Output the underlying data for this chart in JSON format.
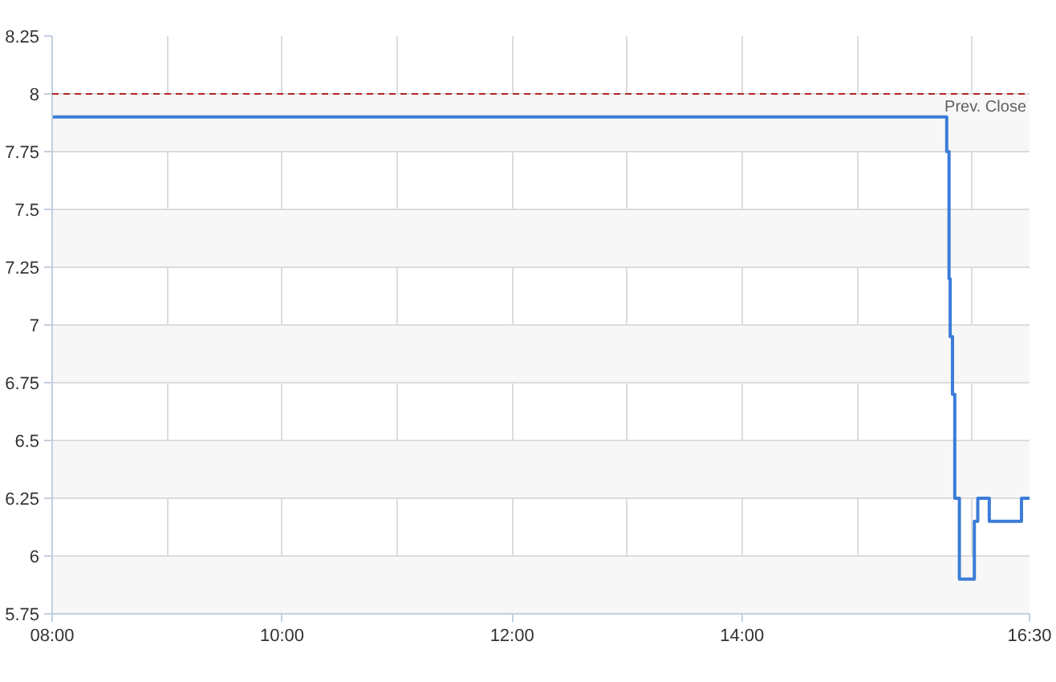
{
  "chart_data": {
    "type": "step",
    "x": [
      8,
      15.78,
      15.8,
      15.81,
      15.83,
      15.85,
      15.89,
      16.02,
      16.05,
      16.15,
      16.43,
      16.5
    ],
    "series": [
      {
        "color": "#3b7dd8",
        "values": [
          7.9,
          7.75,
          7.2,
          6.95,
          6.7,
          6.25,
          5.9,
          6.15,
          6.25,
          6.15,
          6.25,
          6.25
        ]
      }
    ],
    "xlim": [
      8,
      16.5
    ],
    "ylim": [
      5.75,
      8.25
    ],
    "xticks": [
      {
        "value": 8,
        "label": "08:00"
      },
      {
        "value": 9,
        "label": null
      },
      {
        "value": 10,
        "label": "10:00"
      },
      {
        "value": 11,
        "label": null
      },
      {
        "value": 12,
        "label": "12:00"
      },
      {
        "value": 13,
        "label": null
      },
      {
        "value": 14,
        "label": "14:00"
      },
      {
        "value": 15,
        "label": null
      },
      {
        "value": 16,
        "label": null
      },
      {
        "value": 16.5,
        "label": "16:30"
      }
    ],
    "yticks": [
      5.75,
      6,
      6.25,
      6.5,
      6.75,
      7,
      7.25,
      7.5,
      7.75,
      8,
      8.25
    ],
    "ref_lines": [
      {
        "axis": "y",
        "value": 8,
        "label": "Prev. Close",
        "color": "#b22222",
        "line_style": "dashed"
      }
    ],
    "grid": true,
    "line_style": "solid"
  }
}
